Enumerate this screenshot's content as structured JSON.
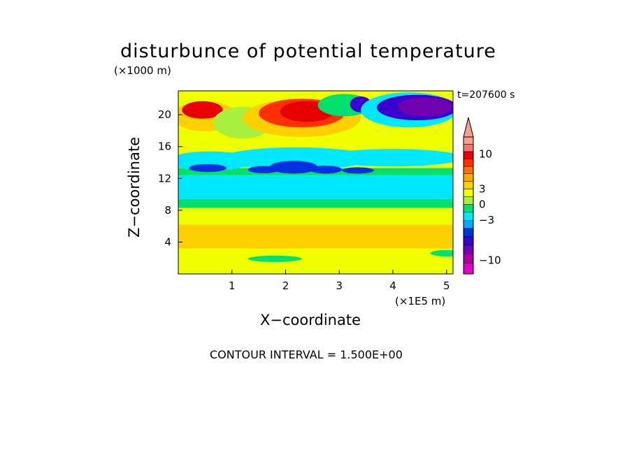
{
  "chart_data": {
    "type": "heatmap",
    "title": "disturbunce of potential temperature",
    "xlabel": "X−coordinate",
    "ylabel": "Z−coordinate",
    "x_unit": "(×1E5 m)",
    "y_unit": "(×1000 m)",
    "time_label": "t=207600 s",
    "footer": "CONTOUR INTERVAL = 1.500E+00",
    "xlim": [
      0,
      5.12
    ],
    "ylim": [
      0,
      23
    ],
    "x_ticks": [
      "1",
      "2",
      "3",
      "4",
      "5"
    ],
    "y_ticks": [
      "4",
      "8",
      "12",
      "16",
      "20"
    ],
    "grid": false,
    "colorbar": {
      "position": "right",
      "labels": [
        {
          "text": "10",
          "value": 10
        },
        {
          "text": "3",
          "value": 3
        },
        {
          "text": "0",
          "value": 0
        },
        {
          "text": "−3",
          "value": -3
        },
        {
          "text": "−10",
          "value": -10
        }
      ],
      "colors": [
        "#e000c8",
        "#b000a0",
        "#7000b0",
        "#3a00d0",
        "#0030e0",
        "#00aaff",
        "#00e8ff",
        "#00e070",
        "#a8f040",
        "#f0ff00",
        "#ffd000",
        "#ffa800",
        "#ff7000",
        "#ff3000",
        "#e80000",
        "#ff7070",
        "#f8a090"
      ]
    },
    "regions": [
      {
        "level": 0,
        "shape": "rect",
        "x0": 0,
        "x1": 5.12,
        "y0": 0,
        "y1": 23,
        "color": "#f0ff00"
      },
      {
        "level": 1,
        "shape": "rect",
        "x0": 0,
        "x1": 5.12,
        "y0": 3.2,
        "y1": 6.2,
        "color": "#ffd000"
      },
      {
        "level": -1,
        "shape": "rect",
        "x0": 0,
        "x1": 5.12,
        "y0": 8.3,
        "y1": 9.4,
        "color": "#00e070"
      },
      {
        "level": -2,
        "shape": "rect",
        "x0": 0,
        "x1": 5.12,
        "y0": 9.4,
        "y1": 12.4,
        "color": "#00e8ff"
      },
      {
        "level": -1,
        "shape": "rect",
        "x0": 0,
        "x1": 5.12,
        "y0": 12.4,
        "y1": 13.3,
        "color": "#00e070"
      },
      {
        "level": -2,
        "shape": "ellipse",
        "cx": 0.6,
        "cy": 14.2,
        "rx": 0.8,
        "ry": 1.2,
        "color": "#00e8ff"
      },
      {
        "level": -2,
        "shape": "ellipse",
        "cx": 2.2,
        "cy": 14.5,
        "rx": 1.4,
        "ry": 1.4,
        "color": "#00e8ff"
      },
      {
        "level": -2,
        "shape": "ellipse",
        "cx": 4.0,
        "cy": 14.6,
        "rx": 1.3,
        "ry": 1.1,
        "color": "#00e8ff"
      },
      {
        "level": -4,
        "shape": "ellipse",
        "cx": 0.55,
        "cy": 13.3,
        "rx": 0.35,
        "ry": 0.5,
        "color": "#0030e0"
      },
      {
        "level": -4,
        "shape": "ellipse",
        "cx": 1.6,
        "cy": 13.1,
        "rx": 0.3,
        "ry": 0.45,
        "color": "#0030e0"
      },
      {
        "level": -4,
        "shape": "ellipse",
        "cx": 2.15,
        "cy": 13.4,
        "rx": 0.45,
        "ry": 0.8,
        "color": "#0030e0"
      },
      {
        "level": -4,
        "shape": "ellipse",
        "cx": 2.75,
        "cy": 13.1,
        "rx": 0.3,
        "ry": 0.5,
        "color": "#0030e0"
      },
      {
        "level": -4,
        "shape": "ellipse",
        "cx": 3.35,
        "cy": 13.0,
        "rx": 0.3,
        "ry": 0.4,
        "color": "#0030e0"
      },
      {
        "level": 1,
        "shape": "ellipse",
        "cx": 0.5,
        "cy": 19.8,
        "rx": 0.6,
        "ry": 1.9,
        "color": "#ffd000"
      },
      {
        "level": 4,
        "shape": "ellipse",
        "cx": 0.45,
        "cy": 20.6,
        "rx": 0.38,
        "ry": 1.1,
        "color": "#e80000"
      },
      {
        "level": 0,
        "shape": "ellipse",
        "cx": 1.2,
        "cy": 19.0,
        "rx": 0.55,
        "ry": 2.0,
        "color": "#a8f040"
      },
      {
        "level": 1,
        "shape": "ellipse",
        "cx": 2.3,
        "cy": 19.6,
        "rx": 1.1,
        "ry": 2.4,
        "color": "#ffd000"
      },
      {
        "level": 3,
        "shape": "ellipse",
        "cx": 2.3,
        "cy": 20.2,
        "rx": 0.8,
        "ry": 1.8,
        "color": "#ff3000"
      },
      {
        "level": 4,
        "shape": "ellipse",
        "cx": 2.4,
        "cy": 20.4,
        "rx": 0.5,
        "ry": 1.3,
        "color": "#e80000"
      },
      {
        "level": -1,
        "shape": "ellipse",
        "cx": 3.1,
        "cy": 21.2,
        "rx": 0.5,
        "ry": 1.4,
        "color": "#00e070"
      },
      {
        "level": -3,
        "shape": "ellipse",
        "cx": 3.4,
        "cy": 21.3,
        "rx": 0.2,
        "ry": 1.0,
        "color": "#3a00d0"
      },
      {
        "level": -2,
        "shape": "ellipse",
        "cx": 4.3,
        "cy": 20.6,
        "rx": 0.9,
        "ry": 2.2,
        "color": "#00e8ff"
      },
      {
        "level": -3,
        "shape": "ellipse",
        "cx": 4.45,
        "cy": 20.9,
        "rx": 0.75,
        "ry": 1.6,
        "color": "#3a00d0"
      },
      {
        "level": -5,
        "shape": "ellipse",
        "cx": 4.6,
        "cy": 21.0,
        "rx": 0.5,
        "ry": 1.2,
        "color": "#7000b0"
      },
      {
        "level": 1,
        "shape": "ellipse",
        "cx": 4.0,
        "cy": 4.3,
        "rx": 1.0,
        "ry": 0.9,
        "color": "#ffd000"
      },
      {
        "level": -1,
        "shape": "ellipse",
        "cx": 1.8,
        "cy": 1.9,
        "rx": 0.5,
        "ry": 0.4,
        "color": "#00e070"
      },
      {
        "level": -1,
        "shape": "ellipse",
        "cx": 5.0,
        "cy": 2.6,
        "rx": 0.3,
        "ry": 0.4,
        "color": "#00e070"
      }
    ]
  }
}
